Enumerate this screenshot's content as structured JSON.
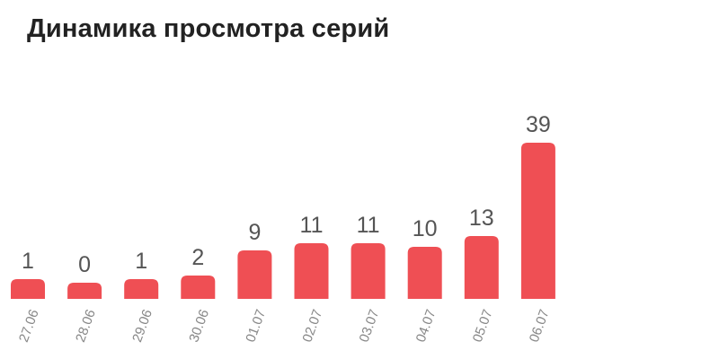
{
  "chart_data": {
    "type": "bar",
    "title": "Динамика просмотра серий",
    "categories": [
      "27.06",
      "28.06",
      "29.06",
      "30.06",
      "01.07",
      "02.07",
      "03.07",
      "04.07",
      "05.07",
      "06.07"
    ],
    "values": [
      1,
      0,
      1,
      2,
      9,
      11,
      11,
      10,
      13,
      39
    ],
    "xlabel": "",
    "ylabel": "",
    "grid": false,
    "data_labels": true,
    "bar_color": "#ef4f54"
  }
}
